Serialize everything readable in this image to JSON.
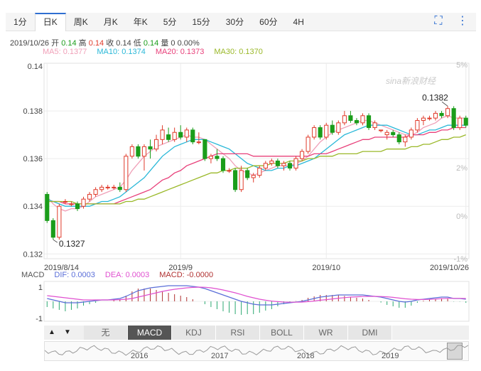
{
  "tabs": [
    "1分",
    "日K",
    "周K",
    "月K",
    "年K",
    "5分",
    "15分",
    "30分",
    "60分",
    "4H"
  ],
  "active_tab": "日K",
  "icons": [
    "fullscreen-icon",
    "more-icon"
  ],
  "ohlc_info": {
    "date": "2019/10/26",
    "open_label": "开",
    "open": "0.14",
    "high_label": "高",
    "high": "0.14",
    "close_label": "收",
    "close": "0.14",
    "low_label": "低",
    "low": "0.14",
    "volume_label": "量",
    "volume": "0",
    "change": "0.00%"
  },
  "ma_legend": [
    {
      "label": "MA5: 0.1377",
      "color": "#f0a0b8"
    },
    {
      "label": "MA10: 0.1374",
      "color": "#2ab8d8"
    },
    {
      "label": "MA20: 0.1373",
      "color": "#e8407a"
    },
    {
      "label": "MA30: 0.1370",
      "color": "#9ab828"
    }
  ],
  "watermark": "sina新浪财经",
  "macd_legend": [
    {
      "label": "MACD",
      "color": "#555555"
    },
    {
      "label": "DIF: 0.0003",
      "color": "#5a6ed8"
    },
    {
      "label": "DEA: 0.0003",
      "color": "#e050d0"
    },
    {
      "label": "MACD: -0.0000",
      "color": "#b03030"
    }
  ],
  "indicator_tabs": [
    "无",
    "MACD",
    "KDJ",
    "RSI",
    "BOLL",
    "WR",
    "DMI"
  ],
  "active_indicator": "MACD",
  "nav_years": [
    "2016",
    "2017",
    "2018",
    "2019"
  ],
  "colors": {
    "up": "#e03a2a",
    "down": "#1a9d1a",
    "grid": "#ececec"
  },
  "chart_data": {
    "type": "candlestick",
    "y_axis_left": {
      "ticks": [
        "0.14",
        "0.138",
        "0.136",
        "0.134",
        "0.132"
      ],
      "range": [
        0.1318,
        0.14
      ]
    },
    "y_axis_right": {
      "ticks": [
        "5%",
        "2%",
        "0%",
        "-1%"
      ]
    },
    "x_ticks": [
      "2019/8/14",
      "2019/9",
      "2019/10",
      "2019/10/26"
    ],
    "annotations": {
      "max": "0.1382",
      "min": "0.1327"
    },
    "candles": [
      [
        0.1345,
        0.1346,
        0.1333,
        0.1334
      ],
      [
        0.1334,
        0.1335,
        0.1326,
        0.1327
      ],
      [
        0.1327,
        0.1341,
        0.1326,
        0.134
      ],
      [
        0.1342,
        0.1343,
        0.1341,
        0.1342
      ],
      [
        0.1341,
        0.1342,
        0.134,
        0.1341
      ],
      [
        0.1341,
        0.1342,
        0.1338,
        0.1339
      ],
      [
        0.134,
        0.1344,
        0.1339,
        0.1343
      ],
      [
        0.1343,
        0.1346,
        0.1342,
        0.1345
      ],
      [
        0.1345,
        0.1348,
        0.1344,
        0.1347
      ],
      [
        0.1347,
        0.1349,
        0.1346,
        0.1348
      ],
      [
        0.1348,
        0.1349,
        0.1347,
        0.1348
      ],
      [
        0.1348,
        0.1349,
        0.1347,
        0.1348
      ],
      [
        0.1348,
        0.135,
        0.1346,
        0.1347
      ],
      [
        0.1347,
        0.1362,
        0.1346,
        0.1361
      ],
      [
        0.1361,
        0.1366,
        0.136,
        0.1365
      ],
      [
        0.1365,
        0.1366,
        0.136,
        0.1361
      ],
      [
        0.1361,
        0.1366,
        0.1355,
        0.1365
      ],
      [
        0.1365,
        0.1368,
        0.136,
        0.1364
      ],
      [
        0.1364,
        0.137,
        0.1363,
        0.1368
      ],
      [
        0.1368,
        0.1374,
        0.1366,
        0.1372
      ],
      [
        0.137,
        0.1373,
        0.1367,
        0.1368
      ],
      [
        0.1368,
        0.1373,
        0.1367,
        0.1371
      ],
      [
        0.1371,
        0.1374,
        0.1368,
        0.1369
      ],
      [
        0.1369,
        0.1373,
        0.1367,
        0.1372
      ],
      [
        0.1372,
        0.1373,
        0.1366,
        0.1367
      ],
      [
        0.1367,
        0.1371,
        0.1366,
        0.1367
      ],
      [
        0.1368,
        0.1368,
        0.1359,
        0.136
      ],
      [
        0.136,
        0.1362,
        0.1358,
        0.1361
      ],
      [
        0.1361,
        0.1364,
        0.1359,
        0.136
      ],
      [
        0.136,
        0.1361,
        0.1354,
        0.1355
      ],
      [
        0.1355,
        0.1356,
        0.1354,
        0.1355
      ],
      [
        0.1355,
        0.1356,
        0.1346,
        0.1347
      ],
      [
        0.1347,
        0.1357,
        0.1346,
        0.1355
      ],
      [
        0.1355,
        0.1356,
        0.1351,
        0.1352
      ],
      [
        0.1352,
        0.1354,
        0.135,
        0.1353
      ],
      [
        0.1353,
        0.1357,
        0.1352,
        0.1356
      ],
      [
        0.1356,
        0.1359,
        0.1355,
        0.1358
      ],
      [
        0.1358,
        0.136,
        0.1357,
        0.1359
      ],
      [
        0.1359,
        0.136,
        0.1356,
        0.1357
      ],
      [
        0.1357,
        0.1359,
        0.1355,
        0.1358
      ],
      [
        0.1358,
        0.1359,
        0.1355,
        0.1356
      ],
      [
        0.1356,
        0.1361,
        0.1355,
        0.136
      ],
      [
        0.136,
        0.1364,
        0.1359,
        0.1363
      ],
      [
        0.1363,
        0.137,
        0.1362,
        0.1369
      ],
      [
        0.1369,
        0.1374,
        0.1368,
        0.1373
      ],
      [
        0.1373,
        0.1374,
        0.1368,
        0.1369
      ],
      [
        0.1369,
        0.1375,
        0.1368,
        0.1374
      ],
      [
        0.1374,
        0.1376,
        0.137,
        0.1371
      ],
      [
        0.1371,
        0.1376,
        0.137,
        0.1375
      ],
      [
        0.1375,
        0.138,
        0.1374,
        0.1378
      ],
      [
        0.1378,
        0.138,
        0.1375,
        0.1376
      ],
      [
        0.1376,
        0.1377,
        0.1374,
        0.1375
      ],
      [
        0.1375,
        0.1379,
        0.1374,
        0.1378
      ],
      [
        0.1378,
        0.1379,
        0.1372,
        0.1373
      ],
      [
        0.1373,
        0.1376,
        0.1372,
        0.1375
      ],
      [
        0.1372,
        0.1372,
        0.1371,
        0.1372
      ],
      [
        0.137,
        0.1372,
        0.1368,
        0.1371
      ],
      [
        0.1371,
        0.1372,
        0.1369,
        0.137
      ],
      [
        0.137,
        0.1371,
        0.1366,
        0.1367
      ],
      [
        0.1367,
        0.137,
        0.1365,
        0.1369
      ],
      [
        0.1369,
        0.1373,
        0.1368,
        0.1372
      ],
      [
        0.1372,
        0.1377,
        0.1371,
        0.1376
      ],
      [
        0.1376,
        0.1378,
        0.1374,
        0.1377
      ],
      [
        0.1377,
        0.1378,
        0.1376,
        0.1377
      ],
      [
        0.1377,
        0.138,
        0.1376,
        0.1379
      ],
      [
        0.1379,
        0.138,
        0.1377,
        0.1378
      ],
      [
        0.1378,
        0.1382,
        0.1377,
        0.1381
      ],
      [
        0.1381,
        0.1382,
        0.1372,
        0.1373
      ],
      [
        0.1373,
        0.1378,
        0.1372,
        0.1377
      ],
      [
        0.1377,
        0.1378,
        0.1373,
        0.1374
      ]
    ],
    "ma_series": {
      "ma5": [
        0.1344,
        0.1341,
        0.1339,
        0.1338,
        0.1339,
        0.1339,
        0.134,
        0.1342,
        0.1344,
        0.1345,
        0.1346,
        0.1347,
        0.1348,
        0.1351,
        0.1355,
        0.1358,
        0.1361,
        0.1363,
        0.1365,
        0.1366,
        0.1367,
        0.1368,
        0.1369,
        0.137,
        0.1369,
        0.1369,
        0.1368,
        0.1366,
        0.1364,
        0.1362,
        0.136,
        0.1357,
        0.1355,
        0.1354,
        0.1353,
        0.1354,
        0.1355,
        0.1356,
        0.1357,
        0.1357,
        0.1357,
        0.1358,
        0.1359,
        0.1361,
        0.1364,
        0.1367,
        0.1369,
        0.1371,
        0.1372,
        0.1373,
        0.1374,
        0.1375,
        0.1376,
        0.1376,
        0.1375,
        0.1374,
        0.1373,
        0.1372,
        0.1371,
        0.137,
        0.137,
        0.1371,
        0.1373,
        0.1374,
        0.1375,
        0.1377,
        0.1378,
        0.1377,
        0.1377,
        0.1377
      ],
      "ma10": [
        0.1343,
        0.1342,
        0.1341,
        0.134,
        0.134,
        0.134,
        0.134,
        0.134,
        0.1341,
        0.1342,
        0.1342,
        0.1343,
        0.1344,
        0.1346,
        0.1348,
        0.135,
        0.1352,
        0.1355,
        0.1358,
        0.1361,
        0.1363,
        0.1365,
        0.1366,
        0.1367,
        0.1368,
        0.1368,
        0.1368,
        0.1367,
        0.1366,
        0.1365,
        0.1364,
        0.1362,
        0.136,
        0.1358,
        0.1357,
        0.1356,
        0.1355,
        0.1355,
        0.1356,
        0.1356,
        0.1357,
        0.1357,
        0.1358,
        0.1359,
        0.136,
        0.1362,
        0.1364,
        0.1366,
        0.1368,
        0.137,
        0.1371,
        0.1372,
        0.1373,
        0.1374,
        0.1374,
        0.1374,
        0.1374,
        0.1373,
        0.1372,
        0.1371,
        0.137,
        0.137,
        0.1371,
        0.1372,
        0.1372,
        0.1373,
        0.1374,
        0.1374,
        0.1374,
        0.1374
      ],
      "ma20": [
        0.1342,
        0.1342,
        0.1342,
        0.1341,
        0.1341,
        0.1341,
        0.1341,
        0.1341,
        0.1341,
        0.1341,
        0.1341,
        0.1341,
        0.1342,
        0.1343,
        0.1344,
        0.1345,
        0.1346,
        0.1347,
        0.1349,
        0.1351,
        0.1352,
        0.1354,
        0.1355,
        0.1357,
        0.1358,
        0.1359,
        0.136,
        0.1361,
        0.1362,
        0.1362,
        0.1362,
        0.1362,
        0.1362,
        0.1362,
        0.1361,
        0.1361,
        0.1361,
        0.1361,
        0.1361,
        0.1361,
        0.1361,
        0.1361,
        0.1361,
        0.1361,
        0.1362,
        0.1362,
        0.1362,
        0.1363,
        0.1364,
        0.1365,
        0.1366,
        0.1367,
        0.1368,
        0.1368,
        0.1369,
        0.1369,
        0.1369,
        0.1369,
        0.1369,
        0.1369,
        0.137,
        0.137,
        0.137,
        0.1371,
        0.1371,
        0.1372,
        0.1372,
        0.1373,
        0.1373,
        0.1373
      ],
      "ma30": [
        0.1342,
        0.1342,
        0.1342,
        0.1342,
        0.1342,
        0.1341,
        0.1341,
        0.1341,
        0.1341,
        0.1341,
        0.1341,
        0.1341,
        0.1341,
        0.1342,
        0.1342,
        0.1343,
        0.1343,
        0.1344,
        0.1345,
        0.1346,
        0.1347,
        0.1348,
        0.1349,
        0.135,
        0.1351,
        0.1352,
        0.1353,
        0.1354,
        0.1354,
        0.1355,
        0.1355,
        0.1356,
        0.1356,
        0.1356,
        0.1357,
        0.1357,
        0.1357,
        0.1358,
        0.1358,
        0.1358,
        0.1359,
        0.1359,
        0.1359,
        0.136,
        0.136,
        0.1361,
        0.1361,
        0.1361,
        0.1362,
        0.1362,
        0.1362,
        0.1362,
        0.1363,
        0.1363,
        0.1363,
        0.1363,
        0.1364,
        0.1364,
        0.1364,
        0.1364,
        0.1365,
        0.1365,
        0.1366,
        0.1366,
        0.1367,
        0.1368,
        0.1368,
        0.1369,
        0.1369,
        0.137
      ]
    },
    "macd": {
      "y_ticks": [
        "1",
        "-1"
      ],
      "dif": [
        0.2,
        0.1,
        0.0,
        -0.1,
        -0.1,
        -0.1,
        -0.05,
        0.0,
        0.05,
        0.1,
        0.1,
        0.15,
        0.2,
        0.35,
        0.55,
        0.75,
        0.85,
        0.95,
        1.0,
        1.05,
        1.1,
        1.1,
        1.1,
        1.1,
        1.05,
        1.0,
        0.9,
        0.75,
        0.6,
        0.45,
        0.3,
        0.15,
        0.0,
        -0.1,
        -0.2,
        -0.25,
        -0.25,
        -0.25,
        -0.2,
        -0.15,
        -0.1,
        -0.05,
        0.0,
        0.1,
        0.2,
        0.3,
        0.35,
        0.4,
        0.45,
        0.45,
        0.45,
        0.45,
        0.45,
        0.4,
        0.35,
        0.3,
        0.2,
        0.1,
        0.0,
        -0.05,
        0.0,
        0.1,
        0.15,
        0.2,
        0.25,
        0.3,
        0.3,
        0.2,
        0.2,
        0.15
      ],
      "dea": [
        0.4,
        0.35,
        0.3,
        0.25,
        0.2,
        0.15,
        0.1,
        0.1,
        0.1,
        0.1,
        0.1,
        0.1,
        0.12,
        0.15,
        0.2,
        0.3,
        0.4,
        0.5,
        0.6,
        0.7,
        0.78,
        0.85,
        0.9,
        0.95,
        0.98,
        1.0,
        0.99,
        0.95,
        0.88,
        0.8,
        0.7,
        0.6,
        0.48,
        0.35,
        0.25,
        0.15,
        0.08,
        0.02,
        -0.02,
        -0.05,
        -0.06,
        -0.06,
        -0.05,
        -0.02,
        0.02,
        0.08,
        0.12,
        0.17,
        0.22,
        0.26,
        0.3,
        0.32,
        0.34,
        0.35,
        0.35,
        0.34,
        0.32,
        0.28,
        0.23,
        0.18,
        0.15,
        0.13,
        0.13,
        0.14,
        0.16,
        0.19,
        0.21,
        0.21,
        0.21,
        0.2
      ],
      "hist": [
        -0.4,
        -0.5,
        -0.6,
        -0.7,
        -0.6,
        -0.5,
        -0.3,
        -0.2,
        -0.1,
        0.0,
        0.0,
        0.1,
        0.15,
        0.4,
        0.7,
        0.9,
        0.9,
        0.9,
        0.8,
        0.7,
        0.6,
        0.5,
        0.4,
        0.3,
        0.15,
        0.0,
        -0.2,
        -0.4,
        -0.55,
        -0.7,
        -0.8,
        -0.9,
        -0.95,
        -0.9,
        -0.9,
        -0.8,
        -0.65,
        -0.55,
        -0.35,
        -0.2,
        -0.08,
        0.02,
        0.1,
        0.25,
        0.35,
        0.45,
        0.45,
        0.45,
        0.45,
        0.38,
        0.3,
        0.25,
        0.2,
        0.1,
        0.0,
        -0.08,
        -0.25,
        -0.35,
        -0.45,
        -0.45,
        -0.3,
        -0.1,
        0.05,
        0.12,
        0.18,
        0.22,
        0.18,
        -0.02,
        -0.02,
        -0.1
      ]
    }
  }
}
